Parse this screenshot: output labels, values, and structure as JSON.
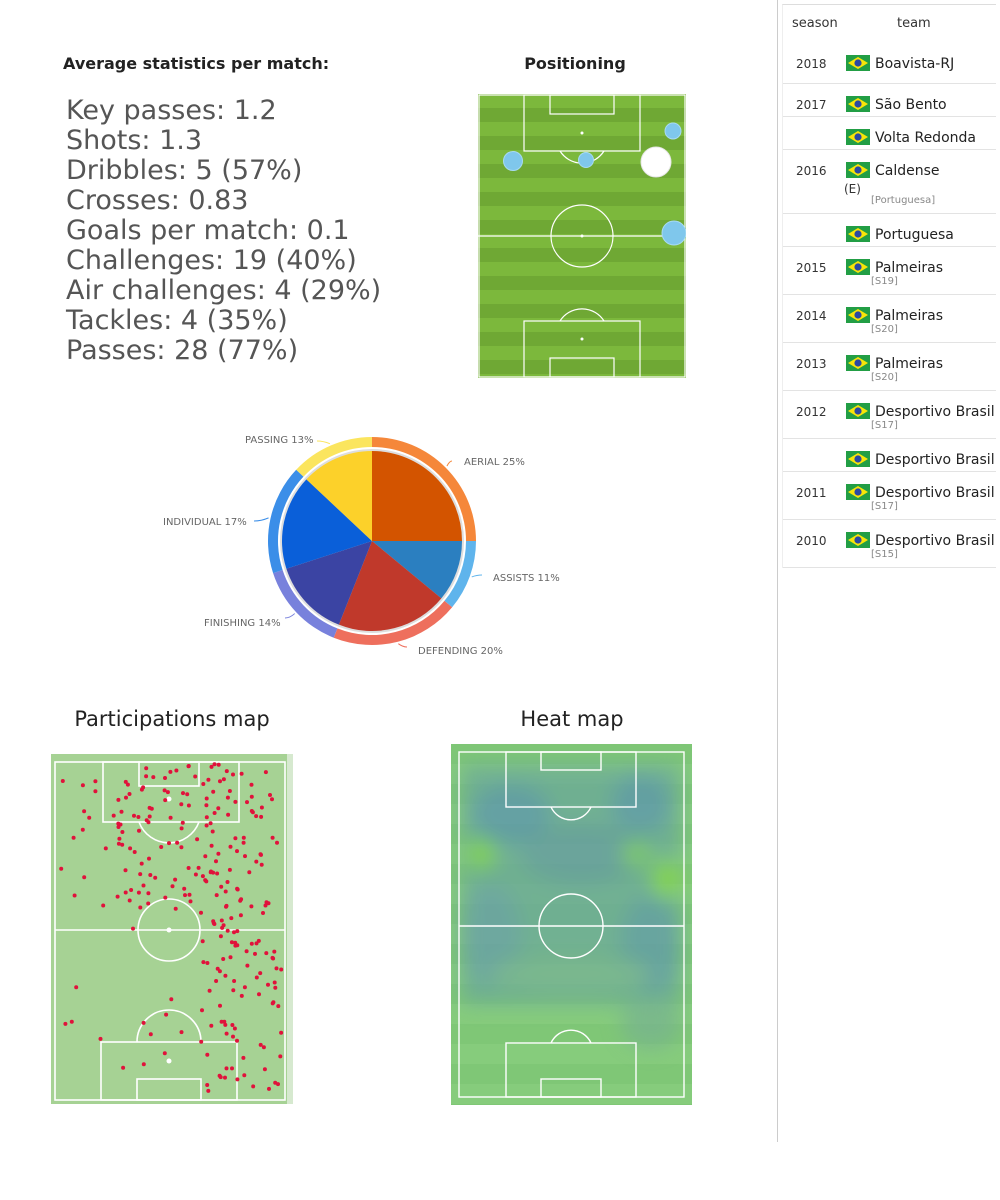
{
  "stats": {
    "title": "Average statistics per match:",
    "lines": [
      "Key passes: 1.2",
      "Shots: 1.3",
      "Dribbles: 5 (57%)",
      "Crosses: 0.83",
      "Goals per match: 0.1",
      "Challenges: 19 (40%)",
      "Air challenges: 4 (29%)",
      "Tackles: 4 (35%)",
      "Passes: 28 (77%)"
    ]
  },
  "positioning": {
    "title": "Positioning"
  },
  "chart_data": {
    "type": "pie",
    "title": "",
    "slices": [
      {
        "label": "AERIAL 25%",
        "value": 25,
        "color": "#d35400",
        "outer": "#f5873a"
      },
      {
        "label": "ASSISTS 11%",
        "value": 11,
        "color": "#2b7fc0",
        "outer": "#5fb4ec"
      },
      {
        "label": "DEFENDING 20%",
        "value": 20,
        "color": "#c0392b",
        "outer": "#ee6f5d"
      },
      {
        "label": "FINISHING 14%",
        "value": 14,
        "color": "#3b44a3",
        "outer": "#7881dc"
      },
      {
        "label": "INDIVIDUAL 17%",
        "value": 17,
        "color": "#0a5fd9",
        "outer": "#3b8ee8"
      },
      {
        "label": "PASSING 13%",
        "value": 13,
        "color": "#fcd12a",
        "outer": "#fbe55e"
      }
    ]
  },
  "participations": {
    "title": "Participations map"
  },
  "heatmap": {
    "title": "Heat map"
  },
  "sidebar": {
    "headers": {
      "season": "season",
      "team": "team"
    },
    "rows": [
      {
        "season": "2018",
        "team": "Boavista-RJ",
        "note": "",
        "extra": ""
      },
      {
        "season": "2017",
        "team": "São Bento",
        "note": "",
        "extra": ""
      },
      {
        "season": "",
        "team": "Volta Redonda",
        "note": "",
        "extra": ""
      },
      {
        "season": "2016",
        "team": "Caldense",
        "note": "[Portuguesa]",
        "extra": "(E)"
      },
      {
        "season": "",
        "team": "Portuguesa",
        "note": "",
        "extra": ""
      },
      {
        "season": "2015",
        "team": "Palmeiras",
        "note": "[S19]",
        "extra": ""
      },
      {
        "season": "2014",
        "team": "Palmeiras",
        "note": "[S20]",
        "extra": ""
      },
      {
        "season": "2013",
        "team": "Palmeiras",
        "note": "[S20]",
        "extra": ""
      },
      {
        "season": "2012",
        "team": "Desportivo Brasil",
        "note": "[S17]",
        "extra": ""
      },
      {
        "season": "",
        "team": "Desportivo Brasil",
        "note": "",
        "extra": ""
      },
      {
        "season": "2011",
        "team": "Desportivo Brasil",
        "note": "[S17]",
        "extra": ""
      },
      {
        "season": "2010",
        "team": "Desportivo Brasil",
        "note": "[S15]",
        "extra": ""
      }
    ]
  }
}
